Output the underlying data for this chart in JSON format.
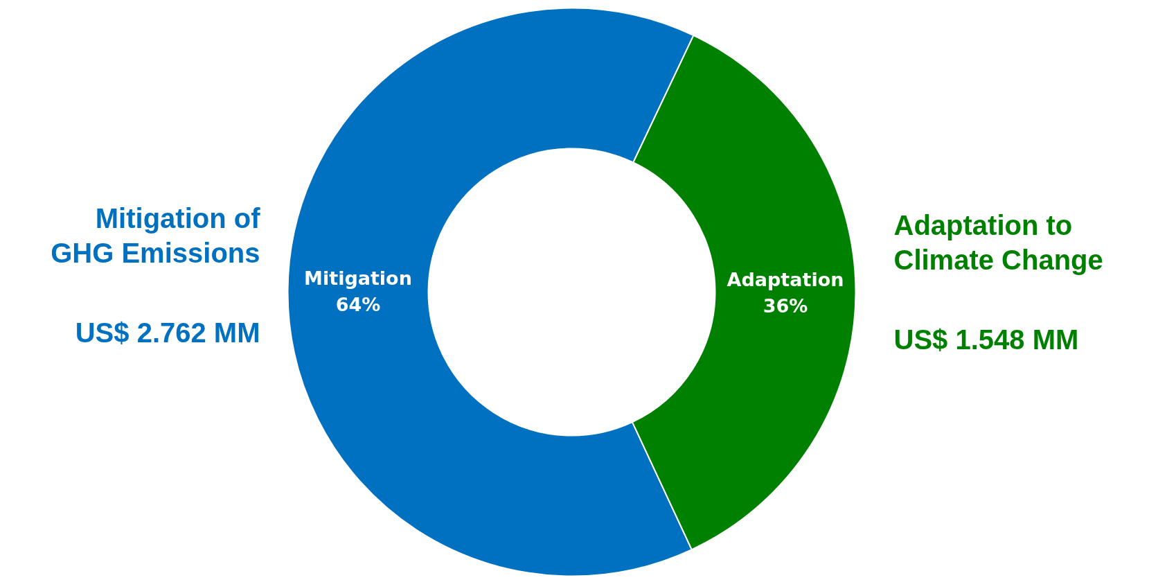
{
  "chart_data": {
    "type": "donut",
    "categories": [
      "Mitigation",
      "Adaptation"
    ],
    "values": [
      64,
      36
    ],
    "colors": [
      "#0070c0",
      "#008000"
    ],
    "value_labels": [
      "64%",
      "36%"
    ],
    "annotations": [
      "Mitigation of\nGHG Emissions",
      "US$ 2.762 MM",
      "Adaptation to\nClimate Change",
      "US$ 1.548 MM"
    ]
  }
}
